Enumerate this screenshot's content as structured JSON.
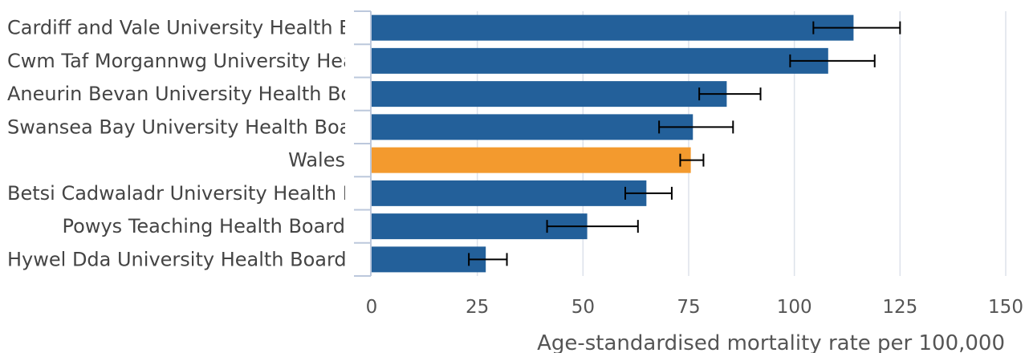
{
  "chart_data": {
    "type": "bar",
    "orientation": "horizontal",
    "title": "",
    "xlabel": "Age-standardised mortality rate per 100,000",
    "ylabel": "",
    "xlim": [
      0,
      150
    ],
    "xticks": [
      0,
      25,
      50,
      75,
      100,
      125,
      150
    ],
    "grid": true,
    "categories": [
      "Cardiff and Vale University Health Board",
      "Cwm Taf Morgannwg University Health Board",
      "Aneurin Bevan University Health Board",
      "Swansea Bay University Health Board",
      "Wales",
      "Betsi Cadwaladr University Health Board",
      "Powys Teaching Health Board",
      "Hywel Dda University Health Board"
    ],
    "values": [
      114,
      108,
      84,
      76,
      75.5,
      65,
      51,
      27
    ],
    "error_low": [
      104.5,
      99,
      77.5,
      68,
      73,
      60,
      41.5,
      23
    ],
    "error_high": [
      125,
      119,
      92,
      85.5,
      78.5,
      71,
      63,
      32
    ],
    "highlight_category": "Wales",
    "colors": {
      "bar": "#23609a",
      "highlight": "#f39a2e",
      "error": "#000000",
      "grid": "#dde2ea",
      "axis": "#bcc8dc"
    }
  }
}
